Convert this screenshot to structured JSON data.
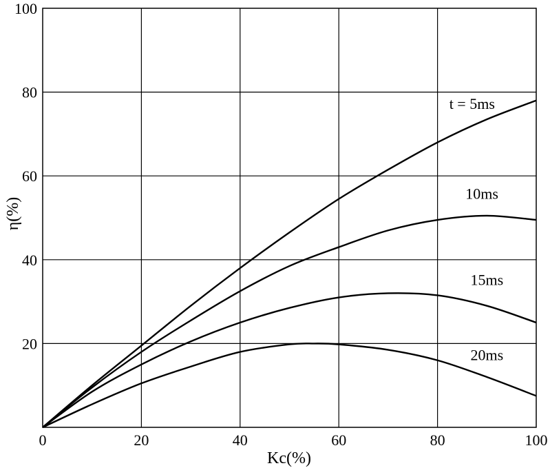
{
  "chart_data": {
    "type": "line",
    "title": "",
    "xlabel": "Kс(%)",
    "ylabel": "η(%)",
    "xlim": [
      0,
      100
    ],
    "ylim": [
      0,
      100
    ],
    "x_ticks": [
      "0",
      "20",
      "40",
      "60",
      "80",
      "100"
    ],
    "y_ticks": [
      "20",
      "40",
      "60",
      "80",
      "100"
    ],
    "grid": true,
    "legend": "none",
    "series": [
      {
        "name": "t = 5ms",
        "x": [
          0,
          10,
          20,
          30,
          40,
          50,
          60,
          70,
          80,
          90,
          100
        ],
        "y": [
          0,
          10,
          19.5,
          29,
          38,
          46.5,
          54.5,
          61.5,
          68,
          73.5,
          78
        ]
      },
      {
        "name": "10ms",
        "x": [
          0,
          10,
          20,
          30,
          40,
          50,
          60,
          70,
          80,
          90,
          100
        ],
        "y": [
          0,
          9.5,
          18,
          25.5,
          32.5,
          38.5,
          43,
          47,
          49.5,
          50.5,
          49.5
        ]
      },
      {
        "name": "15ms",
        "x": [
          0,
          10,
          20,
          30,
          40,
          50,
          60,
          70,
          80,
          90,
          100
        ],
        "y": [
          0,
          8.5,
          15,
          20.5,
          25,
          28.5,
          31,
          32,
          31.5,
          29,
          25
        ]
      },
      {
        "name": "20ms",
        "x": [
          0,
          10,
          20,
          30,
          40,
          50,
          55,
          60,
          70,
          80,
          90,
          100
        ],
        "y": [
          0,
          5.5,
          10.5,
          14.5,
          18,
          19.8,
          20,
          19.8,
          18.5,
          16,
          12,
          7.5
        ]
      }
    ],
    "annotations": [
      {
        "text": "t = 5ms",
        "x": 87,
        "y": 76
      },
      {
        "text": "10ms",
        "x": 89,
        "y": 54.5
      },
      {
        "text": "15ms",
        "x": 90,
        "y": 34
      },
      {
        "text": "20ms",
        "x": 90,
        "y": 16
      }
    ]
  }
}
